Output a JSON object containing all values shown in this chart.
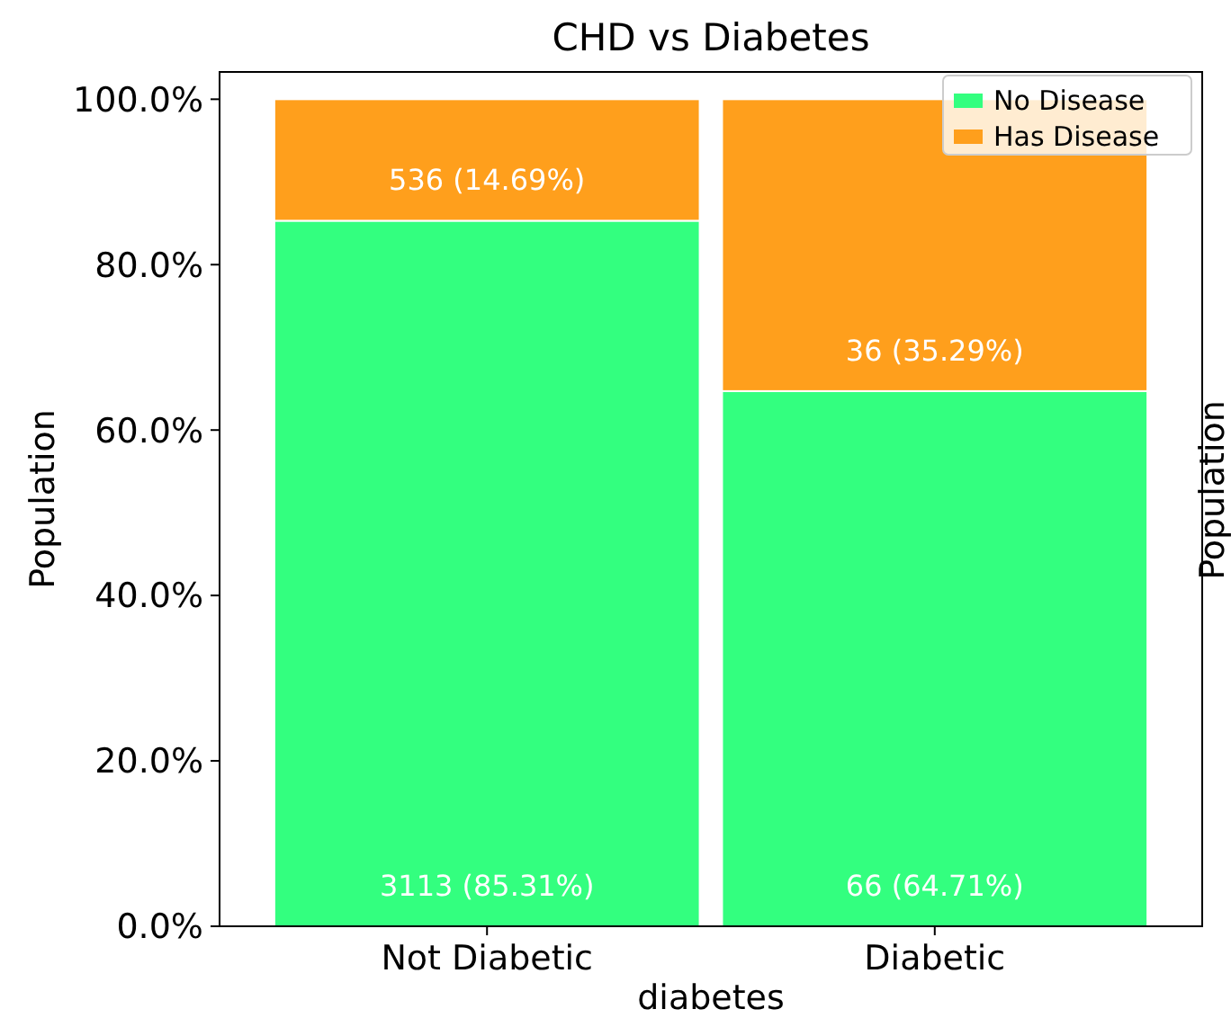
{
  "chart_data": {
    "type": "bar",
    "title": "CHD vs Diabetes",
    "xlabel": "diabetes",
    "ylabel": "Population",
    "y2label": "Population",
    "categories": [
      "Not Diabetic",
      "Diabetic"
    ],
    "series": [
      {
        "name": "No Disease",
        "color": "#33ff7f",
        "values": [
          85.31,
          64.71
        ],
        "value_labels": [
          "3113 (85.31%)",
          "66 (64.71%)"
        ]
      },
      {
        "name": "Has Disease",
        "color": "#ff9f1c",
        "values": [
          14.69,
          35.29
        ],
        "value_labels": [
          "536 (14.69%)",
          "36 (35.29%)"
        ]
      }
    ],
    "stacked": true,
    "ylim": [
      0,
      103.3
    ],
    "yticks": [
      {
        "value": 0,
        "label": "0.0%"
      },
      {
        "value": 20,
        "label": "20.0%"
      },
      {
        "value": 40,
        "label": "40.0%"
      },
      {
        "value": 60,
        "label": "60.0%"
      },
      {
        "value": 80,
        "label": "80.0%"
      },
      {
        "value": 100,
        "label": "100.0%"
      }
    ],
    "legend": "top right",
    "grid": false
  }
}
